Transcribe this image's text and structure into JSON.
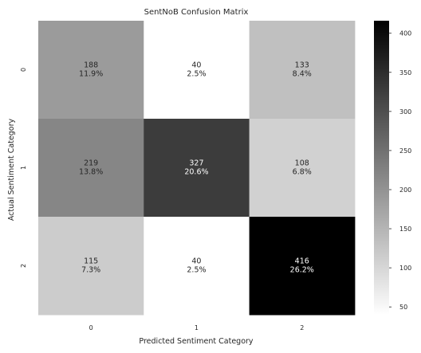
{
  "chart_data": {
    "type": "heatmap",
    "title": "SentNoB Confusion Matrix",
    "xlabel": "Predicted Sentiment Category",
    "ylabel": "Actual Sentiment Category",
    "x_categories": [
      "0",
      "1",
      "2"
    ],
    "y_categories": [
      "0",
      "1",
      "2"
    ],
    "values": [
      [
        188,
        40,
        133
      ],
      [
        219,
        327,
        108
      ],
      [
        115,
        40,
        416
      ]
    ],
    "percent_labels": [
      [
        "11.9%",
        "2.5%",
        "8.4%"
      ],
      [
        "13.8%",
        "20.6%",
        "6.8%"
      ],
      [
        "7.3%",
        "2.5%",
        "26.2%"
      ]
    ],
    "colorbar": {
      "min": 40,
      "max": 416,
      "ticks": [
        "50",
        "100",
        "150",
        "200",
        "250",
        "300",
        "350",
        "400"
      ],
      "colormap": "Greys",
      "low_color": "#ffffff",
      "high_color": "#000000"
    },
    "grid": false,
    "legend": "colorbar-right"
  }
}
